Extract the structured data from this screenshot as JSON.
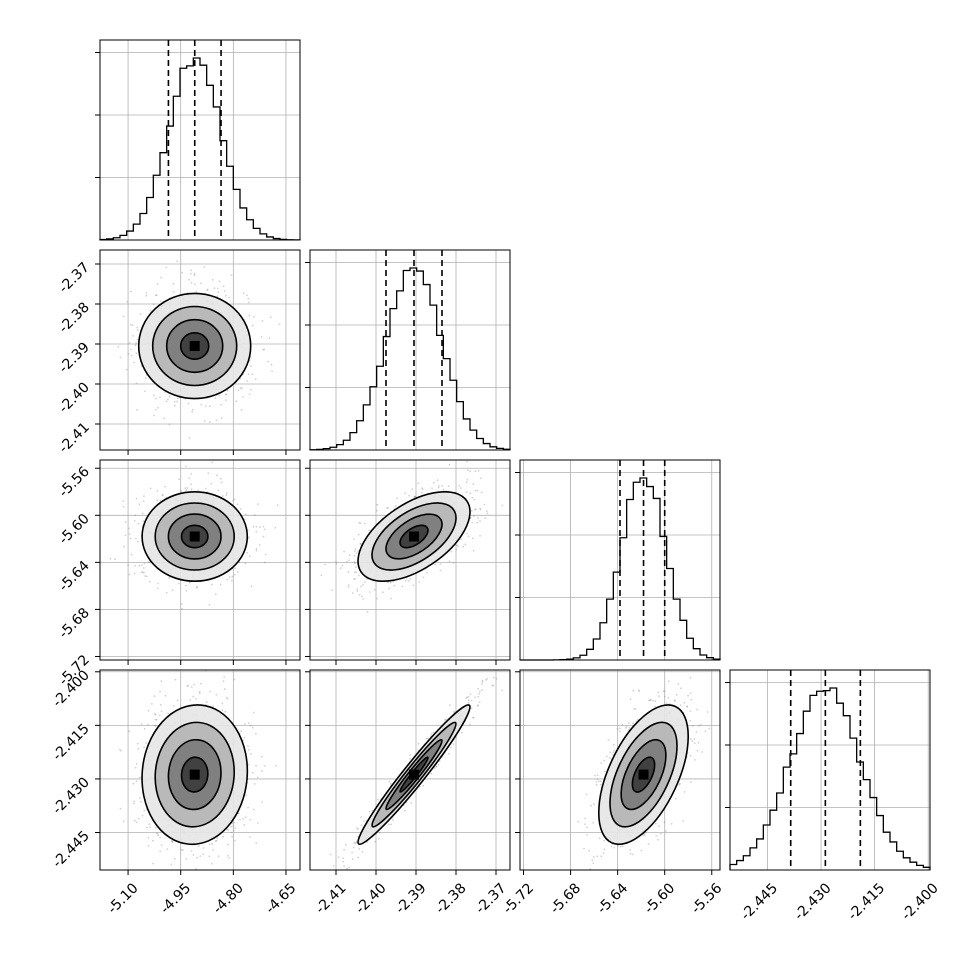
{
  "chart_data": {
    "type": "corner",
    "n_params": 4,
    "parameters": [
      {
        "range": [
          -5.18,
          -4.61
        ],
        "ticks": [
          "-5.10",
          "-4.95",
          "-4.80",
          "-4.65"
        ],
        "median": -4.91,
        "q16": -4.985,
        "q84": -4.835
      },
      {
        "range": [
          -2.4165,
          -2.3665
        ],
        "ticks": [
          "-2.41",
          "-2.40",
          "-2.39",
          "-2.38",
          "-2.37"
        ],
        "median": -2.3905,
        "q16": -2.3975,
        "q84": -2.3835
      },
      {
        "range": [
          -5.723,
          -5.553
        ],
        "ticks": [
          "-5.72",
          "-5.68",
          "-5.64",
          "-5.60",
          "-5.56"
        ],
        "median": -5.618,
        "q16": -5.638,
        "q84": -5.6
      },
      {
        "range": [
          -2.4555,
          -2.3995
        ],
        "ticks": [
          "-2.400",
          "-2.415",
          "-2.430",
          "-2.445"
        ],
        "median": -2.4288,
        "q16": -2.4385,
        "q84": -2.419
      }
    ],
    "row_tick_labels": [
      [],
      [
        "-2.37",
        "-2.38",
        "-2.39",
        "-2.40",
        "-2.41"
      ],
      [
        "-5.56",
        "-5.60",
        "-5.64",
        "-5.68",
        "-5.72"
      ],
      [
        "-2.400",
        "-2.415",
        "-2.430",
        "-2.445"
      ]
    ],
    "correlations": {
      "1-0": 0.0,
      "2-0": 0.0,
      "2-1": 0.55,
      "3-0": 0.05,
      "3-1": 0.97,
      "3-2": 0.55
    },
    "histograms": {
      "bins": 30,
      "style": "step"
    },
    "contour_levels": 4,
    "grid": true
  },
  "colors": {
    "axis": "#000000",
    "grid": "#b0b0b0",
    "points": "#7f7f7f"
  }
}
